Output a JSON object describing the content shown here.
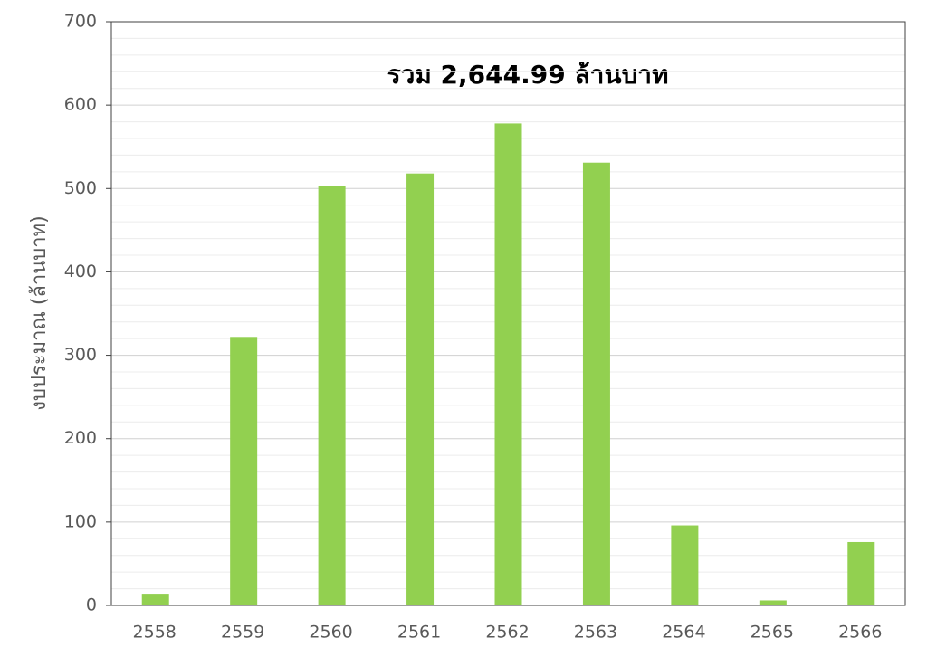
{
  "chart_data": {
    "type": "bar",
    "annotation": "รวม 2,644.99 ล้านบาท",
    "y_label": "งบประมาณ (ล้านบาท)",
    "categories": [
      "2558",
      "2559",
      "2560",
      "2561",
      "2562",
      "2563",
      "2564",
      "2565",
      "2566"
    ],
    "values": [
      14,
      322,
      503,
      518,
      578,
      531,
      96,
      6,
      76
    ],
    "color": "#92d050",
    "ylim": [
      0,
      700
    ],
    "yticks": [
      0,
      100,
      200,
      300,
      400,
      500,
      600,
      700
    ],
    "yminorticks": [
      20,
      40,
      60,
      80,
      120,
      140,
      160,
      180,
      220,
      240,
      260,
      280,
      320,
      340,
      360,
      380,
      420,
      440,
      460,
      480,
      520,
      540,
      560,
      580,
      620,
      640,
      660,
      680
    ],
    "grid": true
  }
}
